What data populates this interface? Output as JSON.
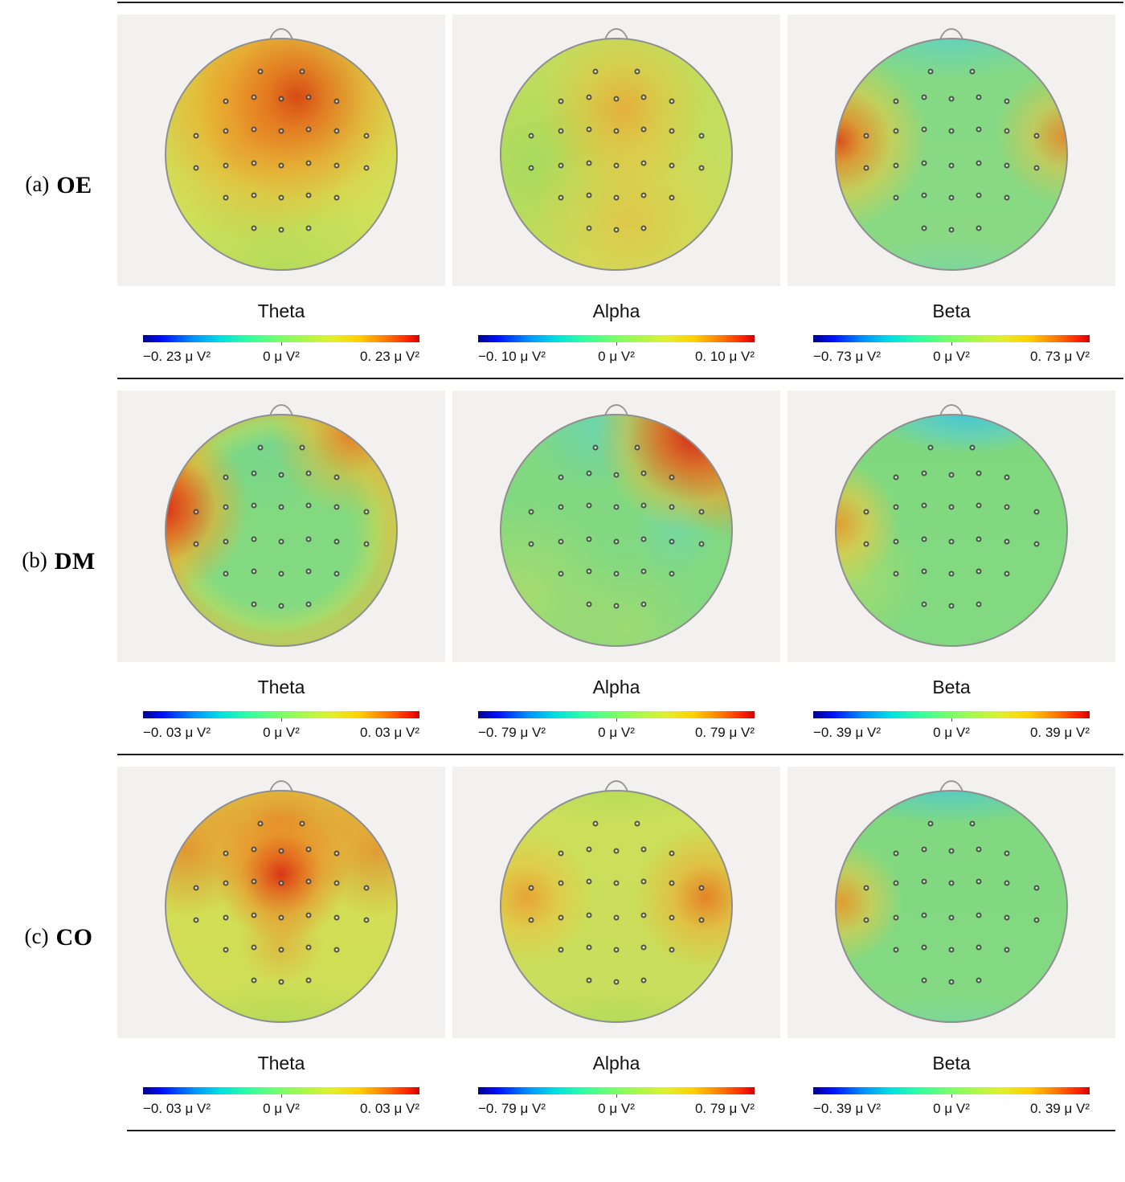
{
  "figure": {
    "rows": [
      {
        "index_label": "(a)",
        "name": "OE",
        "panels": [
          {
            "band": "Theta",
            "cbar": {
              "min": "−0. 23 μ V²",
              "zero": "0 μ V²",
              "max": "0. 23 μ V²"
            }
          },
          {
            "band": "Alpha",
            "cbar": {
              "min": "−0. 10 μ V²",
              "zero": "0 μ V²",
              "max": "0. 10 μ V²"
            }
          },
          {
            "band": "Beta",
            "cbar": {
              "min": "−0. 73 μ V²",
              "zero": "0 μ V²",
              "max": "0. 73 μ V²"
            }
          }
        ]
      },
      {
        "index_label": "(b)",
        "name": "DM",
        "panels": [
          {
            "band": "Theta",
            "cbar": {
              "min": "−0. 03 μ V²",
              "zero": "0 μ V²",
              "max": "0. 03 μ V²"
            }
          },
          {
            "band": "Alpha",
            "cbar": {
              "min": "−0. 79 μ V²",
              "zero": "0 μ V²",
              "max": "0. 79 μ V²"
            }
          },
          {
            "band": "Beta",
            "cbar": {
              "min": "−0. 39 μ V²",
              "zero": "0 μ V²",
              "max": "0. 39 μ V²"
            }
          }
        ]
      },
      {
        "index_label": "(c)",
        "name": "CO",
        "panels": [
          {
            "band": "Theta",
            "cbar": {
              "min": "−0. 03 μ V²",
              "zero": "0 μ V²",
              "max": "0. 03 μ V²"
            }
          },
          {
            "band": "Alpha",
            "cbar": {
              "min": "−0. 79 μ V²",
              "zero": "0 μ V²",
              "max": "0. 79 μ V²"
            }
          },
          {
            "band": "Beta",
            "cbar": {
              "min": "−0. 39 μ V²",
              "zero": "0 μ V²",
              "max": "0. 39 μ V²"
            }
          }
        ]
      }
    ],
    "colors": {
      "colormap": "jet",
      "colormap_stops": [
        "#00008f",
        "#0010ff",
        "#0090ff",
        "#00e0e0",
        "#30ffa0",
        "#70ff70",
        "#a8f84c",
        "#e0f030",
        "#ffd000",
        "#ff7800",
        "#ff2000",
        "#cf0000"
      ]
    }
  }
}
